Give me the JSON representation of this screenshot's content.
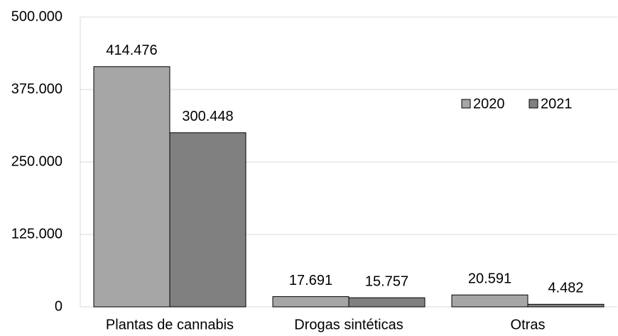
{
  "chart_data": {
    "type": "bar",
    "categories": [
      "Plantas de cannabis",
      "Drogas sintéticas",
      "Otras"
    ],
    "series": [
      {
        "name": "2020",
        "color": "#a6a6a6",
        "values": [
          414476,
          17691,
          20591
        ],
        "value_labels": [
          "414.476",
          "17.691",
          "20.591"
        ]
      },
      {
        "name": "2021",
        "color": "#808080",
        "values": [
          300448,
          15757,
          4482
        ],
        "value_labels": [
          "300.448",
          "15.757",
          "4.482"
        ]
      }
    ],
    "ylim": [
      0,
      500000
    ],
    "yticks": [
      0,
      {
        "value": 125000,
        "label": "125.000"
      },
      {
        "value": 250000,
        "label": "250.000"
      },
      {
        "value": 375000,
        "label": "375.000"
      },
      {
        "value": 500000,
        "label": "500.000"
      }
    ],
    "grid": true,
    "legend": "right"
  }
}
